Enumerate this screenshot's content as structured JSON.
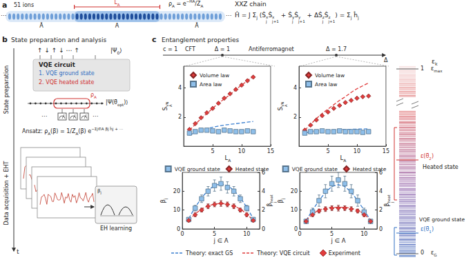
{
  "panel_a": {
    "label": "a",
    "ions": "51 ions",
    "subsystem_length": [
      "L",
      {
        "sub": "A"
      }
    ],
    "subsystem": "A",
    "complement": "Ā",
    "ellipsis": "⋯",
    "rho": [
      "ρ",
      {
        "sub": "A"
      },
      " = e",
      {
        "sup": "−H̃A"
      },
      "/Z",
      {
        "sub": "A"
      }
    ],
    "model": "XXZ chain",
    "hamiltonian": [
      "Ĥ = J ",
      "Σ",
      {
        "sub": "j"
      },
      " (Ŝ",
      {
        "ss": [
          "x",
          "j"
        ]
      },
      "Ŝ",
      {
        "ss": [
          "x",
          "j+1"
        ]
      },
      " + Ŝ",
      {
        "ss": [
          "y",
          "j"
        ]
      },
      "Ŝ",
      {
        "ss": [
          "y",
          "j+1"
        ]
      },
      " + ΔŜ",
      {
        "ss": [
          "z",
          "j"
        ]
      },
      "Ŝ",
      {
        "ss": [
          "z",
          "j+1"
        ]
      },
      ") = ",
      "Σ",
      {
        "sub": "j"
      },
      " ĥ",
      {
        "sub": "j"
      }
    ]
  },
  "panel_b": {
    "label": "b",
    "title": "State preparation and analysis",
    "side_top": "State preparation",
    "side_bottom": "Data acquisition + EHT",
    "time": "t",
    "spins": "↑  ↓  ↑  ↓  ⋯  ↑",
    "initial_state": [
      "|Ψ",
      {
        "sub": "0"
      },
      "⟩"
    ],
    "circuit": "VQE circuit",
    "steps": [
      "1. VQE ground state",
      "2. VQE heated state"
    ],
    "reduced": [
      "ρ",
      {
        "sub": "A"
      }
    ],
    "output_state": [
      "|Ψ(θ⃗",
      {
        "sub": "opt"
      },
      ")⟩"
    ],
    "ellipsis": "⋯",
    "ansatz": [
      "Ansatz: ρ",
      {
        "sub": "A"
      },
      "(β⃗) = ",
      "1/Z",
      {
        "sub": "A"
      },
      "(β⃗) e",
      {
        "sup": "−Σj∈A βj ĥj + ⋯"
      }
    ],
    "learning": "EH learning",
    "learning_axis": [
      "β",
      {
        "sub": "j"
      }
    ]
  },
  "panel_c": {
    "label": "c",
    "title": "Entanglement properties",
    "phase_axis": {
      "central_charge": "c = 1",
      "critical": "CFT",
      "point_1": "Δ = 1",
      "phase": "Antiferromagnet",
      "point_2": "Δ = 1.7",
      "axis": "Δ"
    },
    "spectrum": {
      "axis": [
        "ε",
        {
          "sub": "k"
        }
      ],
      "top": "1",
      "max": [
        "ε",
        {
          "sub": "max"
        }
      ],
      "heated_energy": [
        "ε(θ⃗",
        {
          "sub": "2"
        },
        ")"
      ],
      "heated": "Heated state",
      "ground": "VQE ground state",
      "ground_energy": [
        "ε(θ⃗",
        {
          "sub": "1"
        },
        ")"
      ],
      "bottom": "0",
      "exact_ground": [
        "ε",
        {
          "sub": "G"
        }
      ]
    },
    "shared_legend": [
      {
        "name": "Theory: exact GS",
        "color": "#3a7fd0",
        "line_style": "dashed"
      },
      {
        "name": "Theory: VQE circuit",
        "color": "#e03c3c",
        "line_style": "dashed"
      },
      {
        "name": "Experiment",
        "color": "#e03c3c",
        "marker": "diamond"
      }
    ]
  },
  "chart_data": [
    {
      "type": "scatter",
      "xlabel": [
        "L",
        {
          "sub": "A"
        }
      ],
      "ylabel": [
        "S",
        {
          "ss": [
            "VN",
            "A"
          ]
        }
      ],
      "xlim": [
        0,
        15
      ],
      "xticks": [
        5,
        10,
        15
      ],
      "ylim": [
        0,
        5.5
      ],
      "yticks": [
        2,
        4
      ],
      "grid": false,
      "legend": "upper left",
      "series": [
        {
          "name": "Volume law",
          "type": "scatter",
          "marker": "diamond",
          "color": "#e03c3c",
          "x": [
            1,
            2,
            3,
            4,
            5,
            6,
            7,
            8,
            9,
            10,
            11,
            12
          ],
          "values": [
            1.15,
            1.55,
            1.95,
            2.3,
            2.6,
            2.95,
            3.3,
            3.6,
            3.9,
            4.2,
            4.5,
            4.75
          ]
        },
        {
          "name": "Area law",
          "type": "scatter",
          "marker": "square",
          "color": "#8fbfea",
          "x": [
            1,
            2,
            3,
            4,
            5,
            6,
            7,
            8,
            9,
            10,
            11,
            12
          ],
          "values": [
            0.9,
            1.0,
            1.1,
            1.1,
            1.05,
            1.0,
            1.1,
            1.05,
            1.0,
            1.0,
            1.05,
            1.0
          ]
        },
        {
          "name": "Theory: VQE circuit",
          "type": "line",
          "line_style": "dashed",
          "color": "#e03c3c",
          "x": [
            1,
            2,
            3,
            4,
            5,
            6,
            7,
            8,
            9,
            10,
            11,
            12
          ],
          "values": [
            1.1,
            1.5,
            1.9,
            2.25,
            2.6,
            2.95,
            3.25,
            3.55,
            3.9,
            4.2,
            4.5,
            4.8
          ]
        },
        {
          "name": "Theory: exact GS",
          "type": "line",
          "line_style": "dashed",
          "color": "#3a7fd0",
          "x": [
            1,
            2,
            3,
            4,
            5,
            6,
            7,
            8,
            9,
            10,
            11,
            12
          ],
          "values": [
            0.75,
            0.95,
            1.1,
            1.2,
            1.3,
            1.38,
            1.45,
            1.5,
            1.55,
            1.6,
            1.65,
            1.7
          ]
        }
      ]
    },
    {
      "type": "scatter",
      "xlabel": [
        "L",
        {
          "sub": "A"
        }
      ],
      "ylabel": [
        "S",
        {
          "ss": [
            "VN",
            "A"
          ]
        }
      ],
      "xlim": [
        0,
        15
      ],
      "xticks": [
        5,
        10,
        15
      ],
      "ylim": [
        0,
        5.5
      ],
      "yticks": [
        2,
        4
      ],
      "grid": false,
      "legend": "upper left",
      "series": [
        {
          "name": "Volume law",
          "type": "scatter",
          "marker": "diamond",
          "color": "#e03c3c",
          "x": [
            1,
            2,
            3,
            4,
            5,
            6,
            7,
            8,
            9,
            10,
            11,
            12
          ],
          "values": [
            1.1,
            1.45,
            1.8,
            2.1,
            2.35,
            2.6,
            2.8,
            3.0,
            3.15,
            3.3,
            3.4,
            3.45
          ]
        },
        {
          "name": "Area law",
          "type": "scatter",
          "marker": "square",
          "color": "#8fbfea",
          "x": [
            1,
            2,
            3,
            4,
            5,
            6,
            7,
            8,
            9,
            10,
            11,
            12
          ],
          "values": [
            0.9,
            1.0,
            1.0,
            1.05,
            1.0,
            1.0,
            1.05,
            1.0,
            1.0,
            1.0,
            0.95,
            1.0
          ]
        },
        {
          "name": "Theory: VQE circuit",
          "type": "line",
          "line_style": "dashed",
          "color": "#e03c3c",
          "x": [
            1,
            2,
            3,
            4,
            5,
            6,
            7,
            8,
            9,
            10,
            11,
            12
          ],
          "values": [
            1.1,
            1.5,
            1.9,
            2.25,
            2.55,
            2.85,
            3.15,
            3.4,
            3.7,
            3.95,
            4.15,
            4.35
          ]
        },
        {
          "name": "Theory: exact GS",
          "type": "line",
          "line_style": "dashed",
          "color": "#3a7fd0",
          "x": [
            1,
            2,
            3,
            4,
            5,
            6,
            7,
            8,
            9,
            10,
            11,
            12
          ],
          "values": [
            0.9,
            1.0,
            1.05,
            1.1,
            1.1,
            1.12,
            1.14,
            1.15,
            1.16,
            1.17,
            1.18,
            1.19
          ]
        }
      ]
    },
    {
      "type": "scatter",
      "xlabel": [
        "j ∈ A"
      ],
      "ylabel": [
        "β",
        {
          "sub": "j"
        }
      ],
      "y2label": [
        "β",
        {
          "ss": [
            "heat",
            "j"
          ]
        }
      ],
      "xlim": [
        0,
        12
      ],
      "xticks": [
        0,
        5,
        10
      ],
      "ylim": [
        0,
        30
      ],
      "yticks": [
        0,
        10,
        20
      ],
      "y2lim": [
        0,
        6
      ],
      "y2ticks": [
        0,
        2,
        4,
        6
      ],
      "grid": false,
      "legend": "top",
      "series": [
        {
          "name": "VQE ground state",
          "type": "scatter",
          "marker": "square",
          "color": "#8fbfea",
          "x": [
            1,
            2,
            3,
            4,
            5,
            6,
            7,
            8,
            9,
            10,
            11
          ],
          "values": [
            5,
            11,
            16,
            20,
            23,
            24,
            22,
            20,
            16,
            11,
            5
          ],
          "errors": [
            1,
            1.5,
            2,
            2.5,
            3,
            3.5,
            3,
            2.5,
            2,
            1.5,
            1
          ]
        },
        {
          "name": "Heated state",
          "type": "scatter",
          "marker": "diamond",
          "color": "#e03c3c",
          "axis": "y2",
          "x": [
            1,
            2,
            3,
            4,
            5,
            6,
            7,
            8,
            9,
            10,
            11
          ],
          "values": [
            0.9,
            1.5,
            2.0,
            2.4,
            2.6,
            2.7,
            2.6,
            2.4,
            2.0,
            1.5,
            0.9
          ],
          "errors": [
            0.15,
            0.2,
            0.2,
            0.25,
            0.25,
            0.3,
            0.25,
            0.25,
            0.2,
            0.2,
            0.15
          ]
        },
        {
          "name": "Theory: exact GS",
          "type": "line",
          "line_style": "dashed",
          "color": "#3a7fd0",
          "x": [
            1,
            2,
            3,
            4,
            5,
            6,
            7,
            8,
            9,
            10,
            11
          ],
          "values": [
            5.5,
            11.5,
            16.5,
            20.5,
            23,
            24,
            23,
            20.5,
            16.5,
            11.5,
            5.5
          ]
        },
        {
          "name": "Theory: VQE circuit",
          "type": "line",
          "line_style": "dashed",
          "color": "#e03c3c",
          "axis": "y2",
          "x": [
            1,
            2,
            3,
            4,
            5,
            6,
            7,
            8,
            9,
            10,
            11
          ],
          "values": [
            0.9,
            1.6,
            2.1,
            2.45,
            2.65,
            2.7,
            2.65,
            2.45,
            2.1,
            1.6,
            0.9
          ]
        }
      ]
    },
    {
      "type": "scatter",
      "xlabel": [
        "j ∈ A"
      ],
      "ylabel": [
        "β",
        {
          "sub": "j"
        }
      ],
      "y2label": [
        "β",
        {
          "ss": [
            "heat",
            "j"
          ]
        }
      ],
      "xlim": [
        0,
        12
      ],
      "xticks": [
        0,
        5,
        10
      ],
      "ylim": [
        0,
        30
      ],
      "yticks": [
        0,
        10,
        20
      ],
      "y2lim": [
        0,
        6
      ],
      "y2ticks": [
        0,
        2,
        4,
        6
      ],
      "grid": false,
      "legend": "top",
      "series": [
        {
          "name": "VQE ground state",
          "type": "scatter",
          "marker": "square",
          "color": "#8fbfea",
          "x": [
            1,
            2,
            3,
            4,
            5,
            6,
            7,
            8,
            9,
            10,
            11
          ],
          "values": [
            4,
            9,
            15,
            20,
            24,
            26,
            24,
            20,
            15,
            9,
            4
          ],
          "errors": [
            1,
            2,
            3,
            3.5,
            4,
            4,
            4,
            3.5,
            3,
            2,
            1
          ]
        },
        {
          "name": "Heated state",
          "type": "scatter",
          "marker": "diamond",
          "color": "#e03c3c",
          "axis": "y2",
          "x": [
            1,
            2,
            3,
            4,
            5,
            6,
            7,
            8,
            9,
            10,
            11
          ],
          "values": [
            0.8,
            1.5,
            1.9,
            2.1,
            2.2,
            2.2,
            2.2,
            2.1,
            1.9,
            1.5,
            0.8
          ],
          "errors": [
            0.15,
            0.2,
            0.2,
            0.25,
            0.25,
            0.3,
            0.25,
            0.25,
            0.2,
            0.2,
            0.15
          ]
        },
        {
          "name": "Theory: exact GS",
          "type": "line",
          "line_style": "dashed",
          "color": "#3a7fd0",
          "x": [
            1,
            2,
            3,
            4,
            5,
            6,
            7,
            8,
            9,
            10,
            11
          ],
          "values": [
            4.5,
            10,
            15,
            19.5,
            22.5,
            23.5,
            22.5,
            19.5,
            15,
            10,
            4.5
          ]
        },
        {
          "name": "Theory: VQE circuit",
          "type": "line",
          "line_style": "dashed",
          "color": "#e03c3c",
          "axis": "y2",
          "x": [
            1,
            2,
            3,
            4,
            5,
            6,
            7,
            8,
            9,
            10,
            11
          ],
          "values": [
            0.9,
            1.6,
            2.0,
            2.2,
            2.3,
            2.3,
            2.3,
            2.2,
            2.0,
            1.6,
            0.9
          ]
        }
      ]
    }
  ]
}
